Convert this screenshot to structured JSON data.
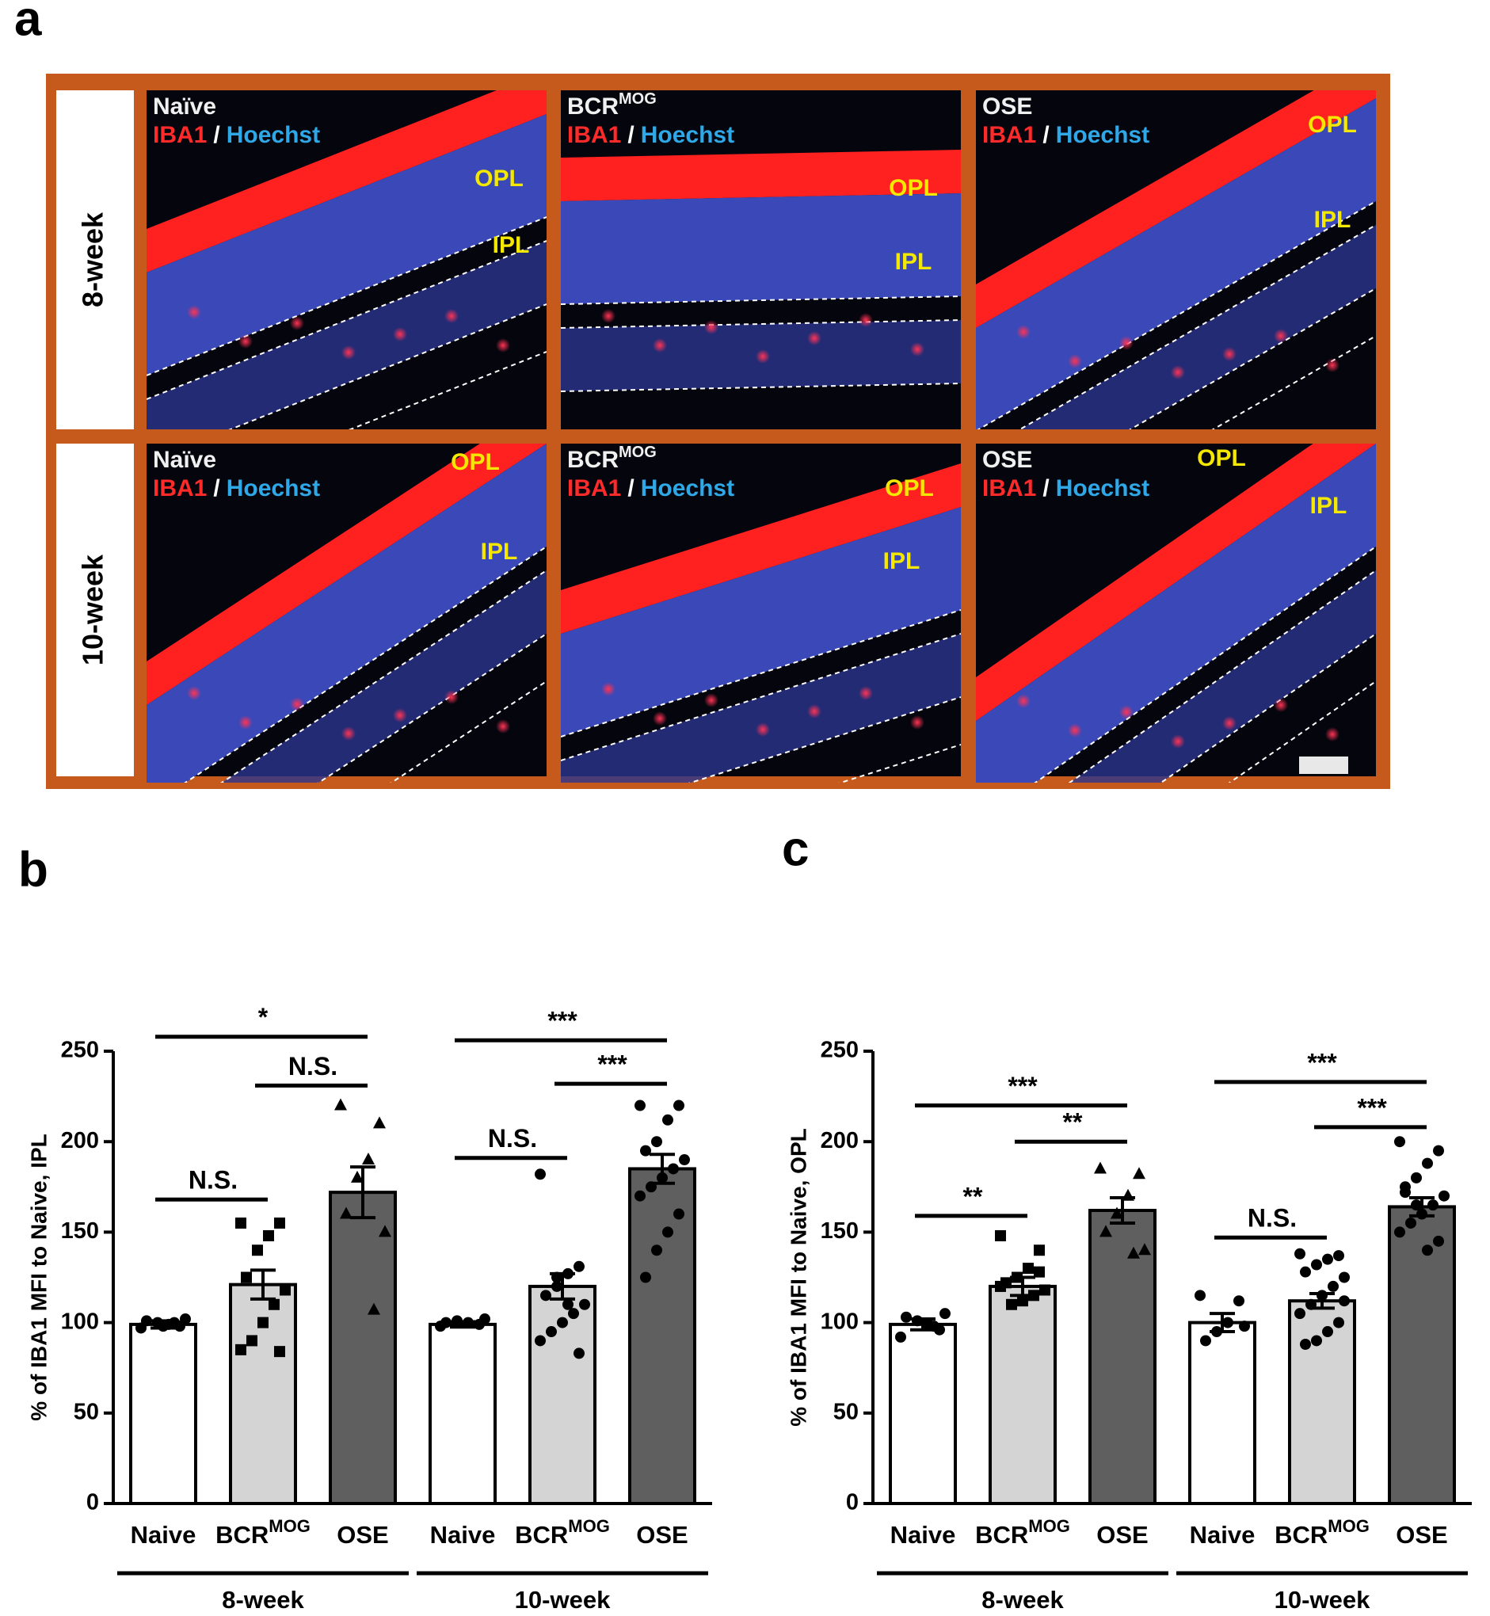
{
  "panel_a": {
    "panel_label": "a",
    "rows": [
      "8-week",
      "10-week"
    ],
    "images": [
      {
        "title": "Naïve",
        "stain": [
          "IBA1",
          "/",
          "Hoechst"
        ],
        "layers": [
          "OPL",
          "IPL"
        ]
      },
      {
        "title": "BCR",
        "title_sup": "MOG",
        "stain": [
          "IBA1",
          "/",
          "Hoechst"
        ],
        "layers": [
          "OPL",
          "IPL"
        ]
      },
      {
        "title": "OSE",
        "stain": [
          "IBA1",
          "/",
          "Hoechst"
        ],
        "layers": [
          "OPL",
          "IPL"
        ]
      },
      {
        "title": "Naïve",
        "stain": [
          "IBA1",
          "/",
          "Hoechst"
        ],
        "layers": [
          "OPL",
          "IPL"
        ]
      },
      {
        "title": "BCR",
        "title_sup": "MOG",
        "stain": [
          "IBA1",
          "/",
          "Hoechst"
        ],
        "layers": [
          "OPL",
          "IPL"
        ]
      },
      {
        "title": "OSE",
        "stain": [
          "IBA1",
          "/",
          "Hoechst"
        ],
        "layers": [
          "OPL",
          "IPL"
        ]
      }
    ]
  },
  "chart_data": [
    {
      "type": "bar",
      "panel_label": "b",
      "ylabel": "% of IBA1 MFI to Naive, IPL",
      "categories": [
        "Naive",
        {
          "text": "BCR",
          "sup": "MOG"
        },
        "OSE",
        "Naive",
        {
          "text": "BCR",
          "sup": "MOG"
        },
        "OSE"
      ],
      "values": [
        99,
        121,
        172,
        99,
        120,
        185
      ],
      "errors": [
        2,
        8,
        14,
        1.5,
        7,
        8
      ],
      "colors": [
        "#ffffff",
        "#d4d4d4",
        "#5f5f5f",
        "#ffffff",
        "#d4d4d4",
        "#5f5f5f"
      ],
      "markers": [
        "circle",
        "square",
        "triangle",
        "circle",
        "circle",
        "circle"
      ],
      "points": [
        [
          97,
          98,
          99,
          100,
          101,
          102,
          100,
          98
        ],
        [
          155,
          155,
          148,
          140,
          125,
          118,
          110,
          100,
          90,
          85,
          84
        ],
        [
          220,
          210,
          190,
          180,
          160,
          150,
          107
        ],
        [
          98,
          99,
          100,
          101,
          100,
          102
        ],
        [
          182,
          131,
          127,
          120,
          115,
          110,
          105,
          100,
          95,
          90,
          83,
          110,
          125
        ],
        [
          220,
          220,
          212,
          200,
          195,
          190,
          185,
          180,
          175,
          170,
          160,
          150,
          140,
          125
        ]
      ],
      "ylim": [
        0,
        250
      ],
      "yticks": [
        0,
        50,
        100,
        150,
        200,
        250
      ],
      "groups": [
        {
          "label": "8-week",
          "start": 0,
          "end": 2
        },
        {
          "label": "10-week",
          "start": 3,
          "end": 5
        }
      ],
      "annotations": [
        {
          "text": "*",
          "start": 0,
          "end": 2,
          "y": 258
        },
        {
          "text": "N.S.",
          "start": 1,
          "end": 2,
          "y": 231
        },
        {
          "text": "N.S.",
          "start": 0,
          "end": 1,
          "y": 168
        },
        {
          "text": "***",
          "start": 3,
          "end": 5,
          "y": 256
        },
        {
          "text": "***",
          "start": 4,
          "end": 5,
          "y": 232
        },
        {
          "text": "N.S.",
          "start": 3,
          "end": 4,
          "y": 191
        }
      ]
    },
    {
      "type": "bar",
      "panel_label": "c",
      "ylabel": "% of IBA1 MFI to Naive, OPL",
      "categories": [
        "Naive",
        {
          "text": "BCR",
          "sup": "MOG"
        },
        "OSE",
        "Naive",
        {
          "text": "BCR",
          "sup": "MOG"
        },
        "OSE"
      ],
      "values": [
        99,
        120,
        162,
        100,
        112,
        164
      ],
      "errors": [
        3,
        5,
        7,
        5,
        4,
        5
      ],
      "colors": [
        "#ffffff",
        "#d4d4d4",
        "#5f5f5f",
        "#ffffff",
        "#d4d4d4",
        "#5f5f5f"
      ],
      "markers": [
        "circle",
        "square",
        "triangle",
        "circle",
        "circle",
        "circle"
      ],
      "points": [
        [
          92,
          96,
          99,
          101,
          103,
          105,
          98
        ],
        [
          148,
          140,
          130,
          125,
          122,
          118,
          115,
          112,
          110,
          120,
          128
        ],
        [
          185,
          182,
          170,
          160,
          150,
          140,
          138
        ],
        [
          115,
          112,
          100,
          95,
          90,
          98
        ],
        [
          138,
          137,
          135,
          132,
          128,
          125,
          120,
          115,
          110,
          105,
          100,
          95,
          90,
          88,
          112
        ],
        [
          200,
          195,
          188,
          180,
          175,
          170,
          165,
          160,
          155,
          150,
          145,
          140,
          165,
          172
        ]
      ],
      "ylim": [
        0,
        250
      ],
      "yticks": [
        0,
        50,
        100,
        150,
        200,
        250
      ],
      "groups": [
        {
          "label": "8-week",
          "start": 0,
          "end": 2
        },
        {
          "label": "10-week",
          "start": 3,
          "end": 5
        }
      ],
      "annotations": [
        {
          "text": "***",
          "start": 0,
          "end": 2,
          "y": 220
        },
        {
          "text": "**",
          "start": 1,
          "end": 2,
          "y": 200
        },
        {
          "text": "**",
          "start": 0,
          "end": 1,
          "y": 159
        },
        {
          "text": "***",
          "start": 3,
          "end": 5,
          "y": 233
        },
        {
          "text": "***",
          "start": 4,
          "end": 5,
          "y": 208
        },
        {
          "text": "N.S.",
          "start": 3,
          "end": 4,
          "y": 147
        }
      ]
    }
  ]
}
